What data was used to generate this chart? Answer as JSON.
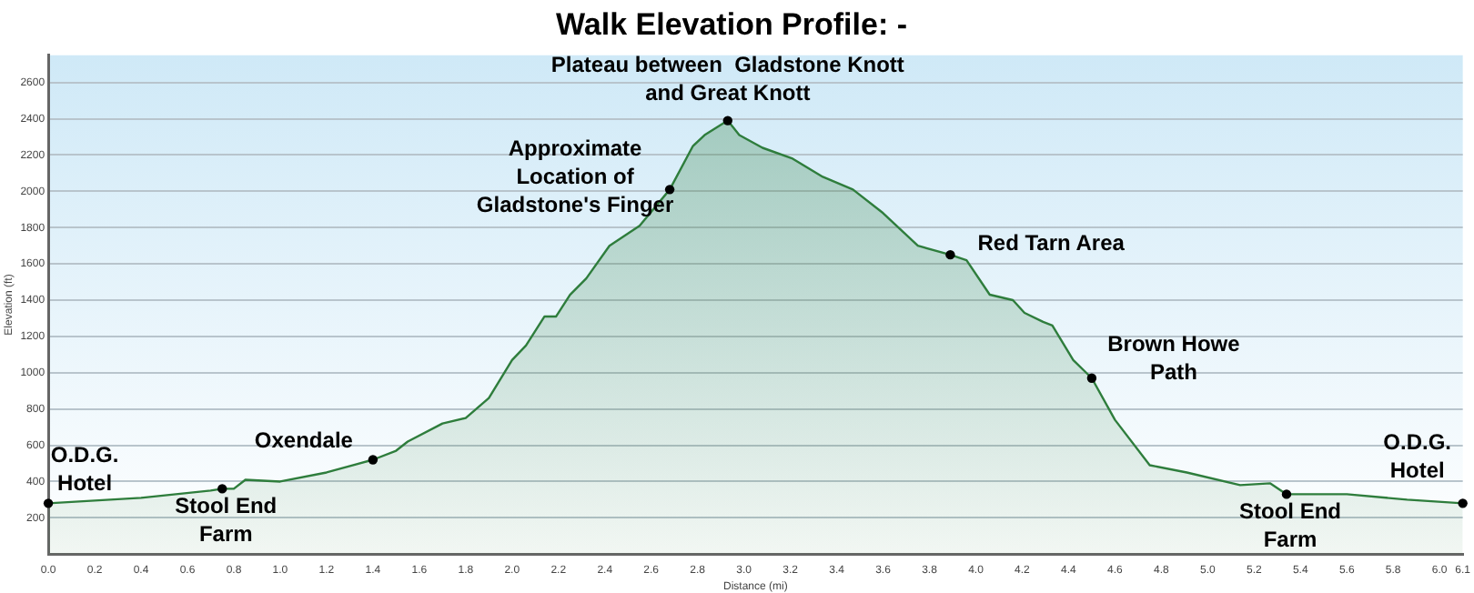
{
  "chart_data": {
    "type": "area",
    "title": "Walk Elevation Profile: -",
    "xlabel": "Distance (mi)",
    "ylabel": "Elevation (ft)",
    "series": [
      {
        "color": "#2e7d3c",
        "x": [
          0,
          0.4,
          0.7,
          0.75,
          0.8,
          0.85,
          1.0,
          1.2,
          1.4,
          1.5,
          1.55,
          1.7,
          1.8,
          1.9,
          2.0,
          2.06,
          2.14,
          2.19,
          2.25,
          2.32,
          2.42,
          2.55,
          2.68,
          2.78,
          2.83,
          2.93,
          2.98,
          3.08,
          3.21,
          3.34,
          3.47,
          3.6,
          3.75,
          3.89,
          3.96,
          4.06,
          4.16,
          4.21,
          4.29,
          4.33,
          4.42,
          4.5,
          4.6,
          4.75,
          4.91,
          5.14,
          5.27,
          5.34,
          5.6,
          5.86,
          6.1
        ],
        "values": [
          280,
          310,
          350,
          360,
          360,
          410,
          400,
          450,
          520,
          570,
          620,
          720,
          750,
          860,
          1070,
          1150,
          1310,
          1310,
          1430,
          1520,
          1700,
          1810,
          2010,
          2250,
          2310,
          2390,
          2310,
          2240,
          2180,
          2080,
          2010,
          1880,
          1700,
          1650,
          1620,
          1430,
          1400,
          1330,
          1280,
          1260,
          1070,
          970,
          740,
          490,
          450,
          380,
          390,
          330,
          330,
          300,
          280
        ]
      }
    ],
    "xlim": [
      0,
      6.1
    ],
    "ylim": [
      0,
      2750
    ],
    "xticks": [
      {
        "value": 0,
        "label": "0.0"
      },
      0.2,
      0.4,
      0.6,
      0.8,
      {
        "value": 1,
        "label": "1.0"
      },
      1.2,
      1.4,
      1.6,
      1.8,
      {
        "value": 2,
        "label": "2.0"
      },
      2.2,
      2.4,
      2.6,
      2.8,
      {
        "value": 3,
        "label": "3.0"
      },
      3.2,
      3.4,
      3.6,
      3.8,
      {
        "value": 4,
        "label": "4.0"
      },
      4.2,
      4.4,
      4.6,
      4.8,
      {
        "value": 5,
        "label": "5.0"
      },
      5.2,
      5.4,
      5.6,
      5.8,
      {
        "value": 6,
        "label": "6.0"
      },
      6.1
    ],
    "yticks": [
      200,
      400,
      600,
      800,
      1000,
      1200,
      1400,
      1600,
      1800,
      2000,
      2200,
      2400,
      2600
    ],
    "grid": "y",
    "legend": false,
    "marker": "none",
    "annotations": [
      {
        "text": "O.D.G. Hotel",
        "x": 0,
        "y": 280
      },
      {
        "text": "Stool End Farm",
        "x": 0.75,
        "y": 360
      },
      {
        "text": "Oxendale",
        "x": 1.4,
        "y": 520
      },
      {
        "text": "Approximate Location of Gladstone's Finger",
        "x": 2.68,
        "y": 2010
      },
      {
        "text": "Plateau between  Gladstone Knott and Great Knott",
        "x": 2.93,
        "y": 2390
      },
      {
        "text": "Red Tarn Area",
        "x": 3.89,
        "y": 1650
      },
      {
        "text": "Brown Howe Path",
        "x": 4.5,
        "y": 970
      },
      {
        "text": "Stool End Farm",
        "x": 5.34,
        "y": 330
      },
      {
        "text": "O.D.G. Hotel",
        "x": 6.1,
        "y": 280
      }
    ]
  }
}
